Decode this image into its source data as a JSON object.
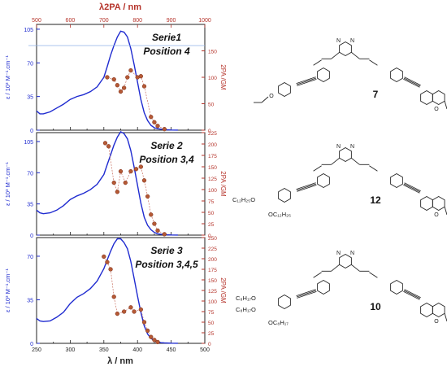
{
  "chart_data": [
    {
      "type": "line",
      "panel": "top",
      "title": "Serie1",
      "subtitle": "Position 4",
      "xlabel_top": "λ2PA / nm",
      "ylabel": "ε / 10³ M⁻¹.cm⁻¹",
      "y2label": "2PA /GM",
      "xlim": [
        250,
        500
      ],
      "ylim": [
        0,
        110
      ],
      "y2lim": [
        0,
        200
      ],
      "xlim_top": [
        500,
        1000
      ],
      "y_ticks": [
        "0",
        "35",
        "70",
        "105"
      ],
      "y2_ticks": [
        "0",
        "50",
        "100",
        "150"
      ],
      "x_top_ticks": [
        "500",
        "600",
        "700",
        "800",
        "900",
        "1000"
      ],
      "series": [
        {
          "axis": "left",
          "x": [
            250,
            255,
            260,
            270,
            280,
            290,
            300,
            310,
            320,
            330,
            340,
            350,
            355,
            360,
            365,
            370,
            375,
            380,
            385,
            390,
            395,
            400,
            405,
            410,
            415,
            420,
            425,
            430,
            435,
            440,
            450,
            460
          ],
          "y": [
            20,
            17,
            17,
            19,
            23,
            27,
            32,
            35,
            37,
            40,
            45,
            55,
            66,
            78,
            88,
            97,
            103,
            102,
            97,
            85,
            68,
            50,
            32,
            18,
            10,
            5,
            2.5,
            1.5,
            1,
            0.5,
            0.2,
            0.1
          ]
        },
        {
          "axis": "right",
          "x": [
            355,
            365,
            370,
            375,
            380,
            385,
            390,
            400,
            405,
            410,
            420,
            425,
            430,
            440
          ],
          "y": [
            100,
            96,
            85,
            73,
            80,
            100,
            113,
            100,
            102,
            83,
            25,
            15,
            8,
            2
          ]
        }
      ]
    },
    {
      "type": "line",
      "panel": "middle",
      "title": "Serie 2",
      "subtitle": "Position 3,4",
      "ylabel": "ε / 10³ M⁻¹.cm⁻¹",
      "y2label": "2PA /GM",
      "xlim": [
        250,
        500
      ],
      "ylim": [
        0,
        115
      ],
      "y2lim": [
        0,
        225
      ],
      "y_ticks": [
        "0",
        "35",
        "70",
        "105"
      ],
      "y2_ticks": [
        "0",
        "25",
        "50",
        "75",
        "100",
        "125",
        "150",
        "175",
        "200",
        "225"
      ],
      "series": [
        {
          "axis": "left",
          "x": [
            250,
            255,
            260,
            270,
            280,
            290,
            300,
            310,
            320,
            330,
            340,
            350,
            355,
            360,
            365,
            370,
            375,
            380,
            385,
            390,
            395,
            400,
            405,
            410,
            415,
            420,
            425,
            430,
            435,
            440,
            450,
            460
          ],
          "y": [
            28,
            25,
            24,
            25,
            28,
            33,
            40,
            44,
            47,
            51,
            57,
            68,
            79,
            90,
            101,
            110,
            116,
            114,
            108,
            95,
            76,
            56,
            36,
            20,
            11,
            6,
            3,
            1.5,
            1,
            0.5,
            0.2,
            0.1
          ]
        },
        {
          "axis": "right",
          "x": [
            352,
            357,
            365,
            370,
            375,
            382,
            390,
            398,
            405,
            410,
            415,
            420,
            425,
            430,
            440
          ],
          "y": [
            202,
            195,
            115,
            95,
            140,
            115,
            140,
            145,
            150,
            120,
            85,
            45,
            25,
            10,
            2
          ]
        }
      ]
    },
    {
      "type": "line",
      "panel": "bottom",
      "title": "Serie 3",
      "subtitle": "Position 3,4,5",
      "xlabel": "λ / nm",
      "ylabel": "ε / 10³ M⁻¹.cm⁻¹",
      "y2label": "2PA /GM",
      "xlim": [
        250,
        500
      ],
      "ylim": [
        0,
        85
      ],
      "y2lim": [
        0,
        250
      ],
      "x_ticks": [
        "250",
        "300",
        "350",
        "400",
        "450",
        "500"
      ],
      "y_ticks": [
        "0",
        "35",
        "70"
      ],
      "y2_ticks": [
        "0",
        "25",
        "50",
        "75",
        "100",
        "125",
        "150",
        "175",
        "200",
        "225",
        "250"
      ],
      "series": [
        {
          "axis": "left",
          "x": [
            250,
            255,
            260,
            270,
            280,
            290,
            300,
            310,
            320,
            330,
            340,
            350,
            355,
            360,
            365,
            370,
            375,
            380,
            385,
            390,
            395,
            400,
            405,
            410,
            415,
            420,
            425,
            430,
            435,
            440,
            450,
            460
          ],
          "y": [
            20,
            18,
            17.5,
            18,
            21,
            25,
            32,
            37,
            40,
            44,
            50,
            60,
            67,
            74,
            80,
            84,
            84,
            81,
            76,
            66,
            52,
            38,
            25,
            14,
            7.5,
            4,
            2,
            1,
            0.5,
            0.3,
            0.1,
            0.05
          ],
          "note": "peak near 376 nm"
        },
        {
          "axis": "right",
          "x": [
            350,
            355,
            360,
            365,
            370,
            380,
            390,
            395,
            405,
            410,
            415,
            420,
            425,
            430
          ],
          "y": [
            205,
            192,
            175,
            110,
            70,
            75,
            85,
            75,
            80,
            50,
            30,
            15,
            8,
            3
          ]
        }
      ]
    }
  ],
  "molecules": [
    {
      "label": "7",
      "substituents": [
        "O"
      ],
      "carbonyl": "O"
    },
    {
      "label": "12",
      "substituents": [
        "C12H25O",
        "OC12H25"
      ],
      "carbonyl": "O"
    },
    {
      "label": "10",
      "substituents": [
        "C8H17O",
        "C8H17O",
        "OC8H17"
      ],
      "carbonyl": "O"
    }
  ],
  "atom_labels": {
    "nitrogen": "N",
    "oxygen": "O"
  },
  "chem_text": {
    "c12_left": "C₁₂H₂₅O",
    "c12_bottom": "OC₁₂H₂₅",
    "c8_a": "C₈H₁₇O",
    "c8_b": "C₈H₁₇O",
    "c8_c": "OC₈H₁₇"
  },
  "colors": {
    "absorption": "#1f2bd0",
    "tpa": "#b5332a",
    "tpa_marker": "#b55a35"
  }
}
